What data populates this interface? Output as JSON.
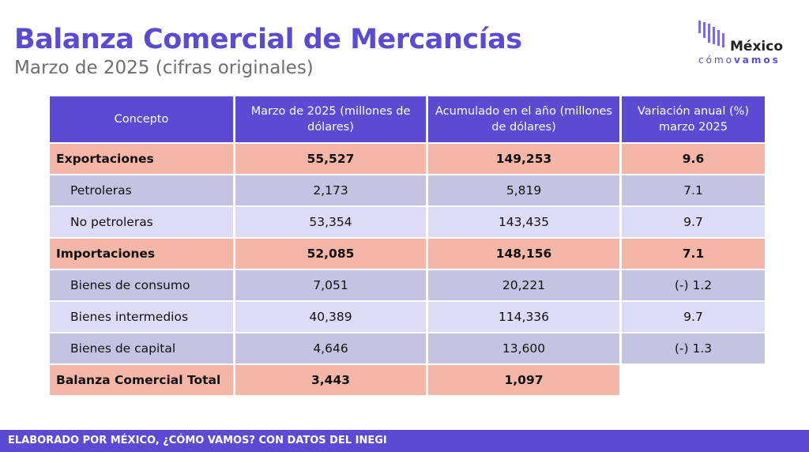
{
  "header": {
    "title": "Balanza Comercial de Mercancías",
    "subtitle": "Marzo de 2025 (cifras originales)"
  },
  "logo": {
    "word": "México",
    "tag_light": "cómo",
    "tag_bold": "vamos"
  },
  "table": {
    "columns": [
      "Concepto",
      "Marzo de 2025 (millones de dólares)",
      "Acumulado en el año (millones de dólares)",
      "Variación anual (%) marzo 2025"
    ],
    "rows": [
      {
        "concept": "Exportaciones",
        "march": "55,527",
        "accum": "149,253",
        "var": "9.6"
      },
      {
        "concept": "Petroleras",
        "march": "2,173",
        "accum": "5,819",
        "var": "7.1"
      },
      {
        "concept": "No petroleras",
        "march": "53,354",
        "accum": "143,435",
        "var": "9.7"
      },
      {
        "concept": "Importaciones",
        "march": "52,085",
        "accum": "148,156",
        "var": "7.1"
      },
      {
        "concept": "Bienes de consumo",
        "march": "7,051",
        "accum": "20,221",
        "var": "(-) 1.2"
      },
      {
        "concept": "Bienes intermedios",
        "march": "40,389",
        "accum": "114,336",
        "var": "9.7"
      },
      {
        "concept": "Bienes de capital",
        "march": "4,646",
        "accum": "13,600",
        "var": "(-) 1.3"
      },
      {
        "concept": "Balanza Comercial Total",
        "march": "3,443",
        "accum": "1,097",
        "var": ""
      }
    ]
  },
  "footer": {
    "text": "ELABORADO POR MÉXICO, ¿CÓMO VAMOS? CON DATOS DEL INEGI"
  },
  "colors": {
    "accent": "#5b4bd3",
    "main_row": "#f4b6a6",
    "sub_row_dark": "#c4c3e2",
    "sub_row_light": "#dddcf7"
  }
}
